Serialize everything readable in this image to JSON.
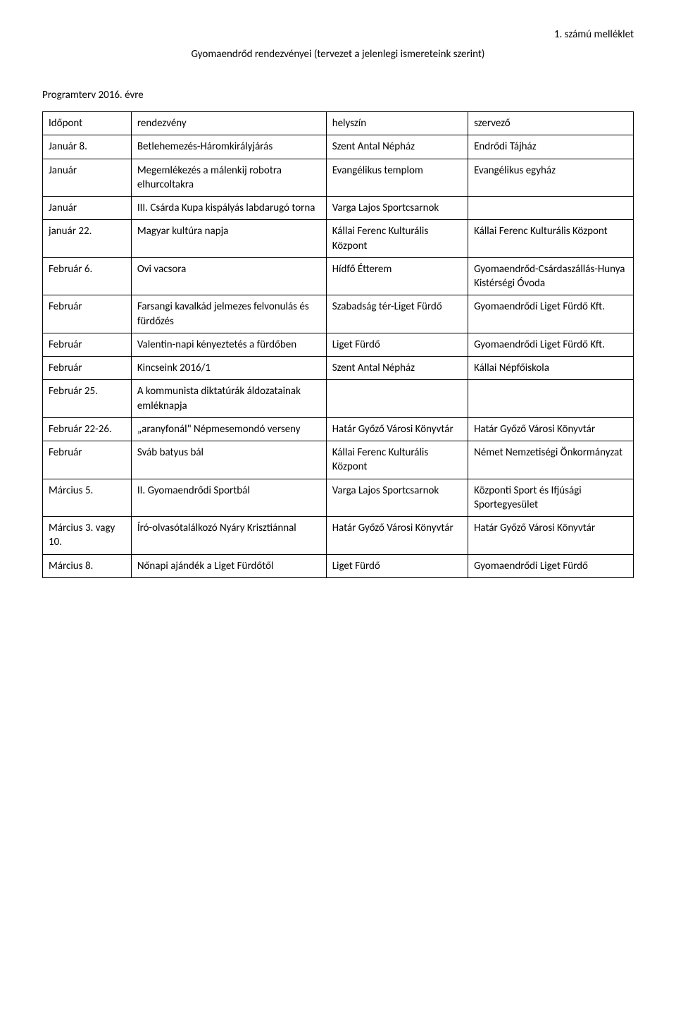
{
  "header_right": "1. számú melléklet",
  "subtitle": "Gyomaendrőd rendezvényei (tervezet a jelenlegi ismereteink szerint)",
  "program_title": "Programterv 2016. évre",
  "table": {
    "columns": [
      "Időpont",
      "rendezvény",
      "helyszín",
      "szervező"
    ],
    "rows": [
      [
        "Időpont",
        "rendezvény",
        "helyszín",
        "szervező"
      ],
      [
        "Január 8.",
        "Betlehemezés-Háromkirályjárás",
        "Szent Antal Népház",
        "Endrődi Tájház"
      ],
      [
        "Január",
        "Megemlékezés a málenkij robotra elhurcoltakra",
        "Evangélikus templom",
        "Evangélikus egyház"
      ],
      [
        "Január",
        "III. Csárda Kupa kispályás labdarugó torna",
        "Varga Lajos Sportcsarnok",
        ""
      ],
      [
        "január 22.",
        "Magyar kultúra napja",
        "Kállai Ferenc Kulturális Központ",
        "Kállai Ferenc Kulturális Központ"
      ],
      [
        "Február 6.",
        "Ovi vacsora",
        "Hídfő Étterem",
        "Gyomaendrőd-Csárdaszállás-Hunya Kistérségi Óvoda"
      ],
      [
        "Február",
        "Farsangi kavalkád jelmezes felvonulás és fürdőzés",
        "Szabadság tér-Liget Fürdő",
        "Gyomaendrődi Liget Fürdő Kft."
      ],
      [
        "Február",
        "Valentin-napi kényeztetés a fürdőben",
        "Liget Fürdő",
        "Gyomaendrődi Liget Fürdő Kft."
      ],
      [
        "Február",
        "Kincseink 2016/1",
        "Szent Antal Népház",
        "Kállai Népfőiskola"
      ],
      [
        "Február 25.",
        "A kommunista diktatúrák áldozatainak emléknapja",
        "",
        ""
      ],
      [
        "Február 22-26.",
        "„aranyfonál\" Népmesemondó verseny",
        "Határ Győző Városi Könyvtár",
        "Határ Győző Városi Könyvtár"
      ],
      [
        "Február",
        "Sváb batyus bál",
        "Kállai Ferenc Kulturális Központ",
        "Német Nemzetiségi Önkormányzat"
      ],
      [
        "Március 5.",
        "II. Gyomaendrődi Sportbál",
        "Varga Lajos Sportcsarnok",
        "Központi Sport és Ifjúsági Sportegyesület"
      ],
      [
        "Március 3. vagy 10.",
        "Író-olvasótalálkozó Nyáry Krisztiánnal",
        "Határ Győző Városi Könyvtár",
        "Határ Győző Városi Könyvtár"
      ],
      [
        "Március 8.",
        "Nőnapi ajándék a Liget Fürdőtől",
        "Liget Fürdő",
        "Gyomaendrődi Liget Fürdő"
      ]
    ]
  }
}
